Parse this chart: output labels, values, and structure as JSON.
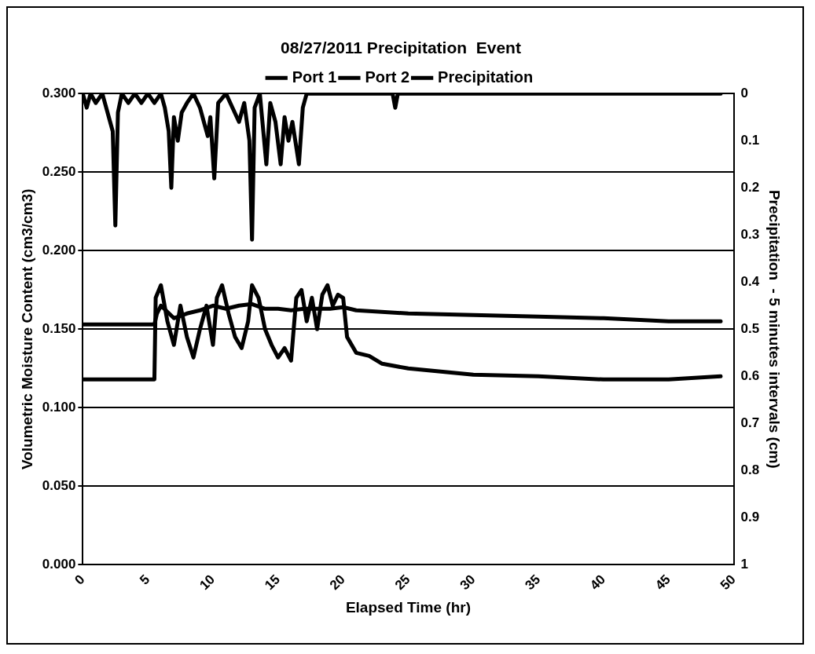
{
  "chart_data": {
    "type": "line",
    "title": "08/27/2011 Precipitation  Event",
    "xlabel": "Elapsed Time (hr)",
    "ylabel": "Volumetric Moisture Content (cm3/cm3)",
    "y2label": "Precipitation  - 5 minutes intervals (cm)",
    "xlim": [
      0,
      50
    ],
    "xticks": [
      0,
      5,
      10,
      15,
      20,
      25,
      30,
      35,
      40,
      45,
      50
    ],
    "ylim": [
      0,
      0.3
    ],
    "yticks": [
      {
        "value": 0,
        "label": "0.000"
      },
      {
        "value": 0.05,
        "label": "0.050"
      },
      {
        "value": 0.1,
        "label": "0.100"
      },
      {
        "value": 0.15,
        "label": "0.150"
      },
      {
        "value": 0.2,
        "label": "0.200"
      },
      {
        "value": 0.25,
        "label": "0.250"
      },
      {
        "value": 0.3,
        "label": "0.300"
      }
    ],
    "y2lim": [
      1,
      0
    ],
    "y2ticks": [
      0,
      0.1,
      0.2,
      0.3,
      0.4,
      0.5,
      0.6,
      0.7,
      0.8,
      0.9,
      1
    ],
    "grid": "y",
    "legend": "top",
    "marker": "none",
    "line_style": "solid",
    "series": [
      {
        "name": "Port 1",
        "color": "#000000",
        "x": [
          0,
          5.5,
          5.6,
          6.0,
          6.5,
          7,
          7.5,
          8,
          8.5,
          9,
          9.5,
          10,
          10.3,
          10.7,
          11.2,
          11.7,
          12.2,
          12.7,
          13.0,
          13.5,
          14,
          14.5,
          15,
          15.5,
          16,
          16.4,
          16.8,
          17.2,
          17.6,
          18,
          18.4,
          18.8,
          19.2,
          19.6,
          20,
          20.3,
          21,
          22,
          23,
          25,
          30,
          35,
          40,
          45,
          49
        ],
        "values": [
          0.118,
          0.118,
          0.17,
          0.178,
          0.155,
          0.14,
          0.165,
          0.145,
          0.132,
          0.15,
          0.165,
          0.14,
          0.17,
          0.178,
          0.16,
          0.145,
          0.138,
          0.155,
          0.178,
          0.17,
          0.15,
          0.14,
          0.132,
          0.138,
          0.13,
          0.17,
          0.175,
          0.155,
          0.17,
          0.15,
          0.172,
          0.178,
          0.165,
          0.172,
          0.17,
          0.145,
          0.135,
          0.133,
          0.128,
          0.125,
          0.121,
          0.12,
          0.118,
          0.118,
          0.12
        ]
      },
      {
        "name": "Port 2",
        "color": "#000000",
        "x": [
          0,
          5.5,
          5.7,
          6,
          7,
          8,
          9,
          10,
          11,
          12,
          13,
          14,
          15,
          16,
          17,
          18,
          19,
          20,
          21,
          25,
          30,
          35,
          40,
          45,
          49
        ],
        "values": [
          0.153,
          0.153,
          0.16,
          0.165,
          0.157,
          0.16,
          0.162,
          0.165,
          0.163,
          0.165,
          0.166,
          0.163,
          0.163,
          0.162,
          0.163,
          0.163,
          0.163,
          0.164,
          0.162,
          0.16,
          0.159,
          0.158,
          0.157,
          0.155,
          0.155
        ]
      },
      {
        "name": "Precipitation",
        "color": "#000000",
        "axis": "y2",
        "x": [
          0,
          0.3,
          0.6,
          1.0,
          1.5,
          2.0,
          2.3,
          2.5,
          2.7,
          3.0,
          3.5,
          4,
          4.5,
          5,
          5.5,
          6,
          6.3,
          6.6,
          6.8,
          7.0,
          7.3,
          7.6,
          8,
          8.5,
          9,
          9.3,
          9.6,
          9.8,
          10.1,
          10.4,
          11,
          11.5,
          12,
          12.4,
          12.8,
          13.0,
          13.2,
          13.6,
          14.1,
          14.4,
          14.8,
          15.2,
          15.5,
          15.8,
          16.1,
          16.6,
          16.9,
          17.2,
          23.8,
          24,
          24.2,
          49
        ],
        "values": [
          0,
          0.03,
          0,
          0.02,
          0,
          0.05,
          0.08,
          0.28,
          0.04,
          0,
          0.02,
          0,
          0.02,
          0,
          0.02,
          0,
          0.03,
          0.08,
          0.2,
          0.05,
          0.1,
          0.04,
          0.02,
          0,
          0.03,
          0.06,
          0.09,
          0.05,
          0.18,
          0.02,
          0,
          0.03,
          0.06,
          0.02,
          0.1,
          0.31,
          0.03,
          0,
          0.15,
          0.02,
          0.06,
          0.15,
          0.05,
          0.1,
          0.06,
          0.15,
          0.03,
          0,
          0,
          0.03,
          0,
          0
        ]
      }
    ]
  }
}
